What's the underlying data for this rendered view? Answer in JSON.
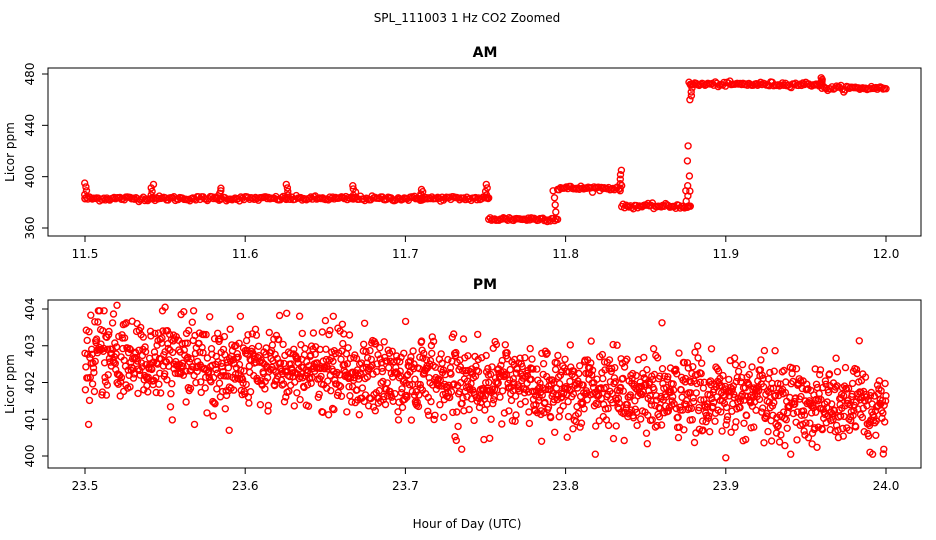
{
  "chart_data": [
    {
      "type": "scatter",
      "figure_title": "SPL_111003  1 Hz CO2 Zoomed",
      "title": "AM",
      "xlabel": "Hour of Day (UTC)",
      "ylabel": "Licor ppm",
      "xlim": [
        11.5,
        12.0
      ],
      "ylim": [
        360,
        480
      ],
      "xticks": [
        "11.5",
        "11.6",
        "11.7",
        "11.8",
        "11.9",
        "12.0"
      ],
      "yticks": [
        "360",
        "400",
        "440",
        "480"
      ],
      "marker_color": "#ff0000",
      "segments": [
        {
          "x_start": 11.5,
          "x_end": 11.752,
          "y": 383
        },
        {
          "x_start": 11.752,
          "x_end": 11.795,
          "y": 367
        },
        {
          "x_start": 11.795,
          "x_end": 11.835,
          "y": 391
        },
        {
          "x_start": 11.835,
          "x_end": 11.877,
          "y": 377
        },
        {
          "x_start": 11.877,
          "x_end": 11.96,
          "y": 472
        },
        {
          "x_start": 11.96,
          "x_end": 12.0,
          "y": 469
        }
      ],
      "spikes": [
        {
          "x": 11.5,
          "y": 395
        },
        {
          "x": 11.542,
          "y": 394
        },
        {
          "x": 11.584,
          "y": 391
        },
        {
          "x": 11.626,
          "y": 394
        },
        {
          "x": 11.668,
          "y": 393
        },
        {
          "x": 11.71,
          "y": 390
        },
        {
          "x": 11.751,
          "y": 394
        },
        {
          "x": 11.793,
          "y": 389
        },
        {
          "x": 11.835,
          "y": 405
        },
        {
          "x": 11.876,
          "y": 393
        },
        {
          "x": 11.877,
          "y": 424
        },
        {
          "x": 11.878,
          "y": 460
        },
        {
          "x": 11.96,
          "y": 477
        }
      ]
    },
    {
      "type": "scatter",
      "title": "PM",
      "xlabel": "Hour of Day (UTC)",
      "ylabel": "Licor ppm",
      "xlim": [
        23.5,
        24.0
      ],
      "ylim": [
        400,
        404
      ],
      "xticks": [
        "23.5",
        "23.6",
        "23.7",
        "23.8",
        "23.9",
        "24.0"
      ],
      "yticks": [
        "400",
        "401",
        "402",
        "403",
        "404"
      ],
      "marker_color": "#ff0000",
      "trend": {
        "x": [
          23.5,
          24.0
        ],
        "y": [
          402.7,
          401.3
        ]
      },
      "noise_sd_ppm": 0.55,
      "outliers": [
        {
          "x": 23.52,
          "y": 404.1
        },
        {
          "x": 23.55,
          "y": 404.05
        },
        {
          "x": 23.56,
          "y": 403.85
        },
        {
          "x": 23.655,
          "y": 403.8
        },
        {
          "x": 23.59,
          "y": 400.7
        },
        {
          "x": 23.785,
          "y": 400.4
        },
        {
          "x": 23.9,
          "y": 399.95
        },
        {
          "x": 23.99,
          "y": 400.1
        }
      ]
    }
  ]
}
